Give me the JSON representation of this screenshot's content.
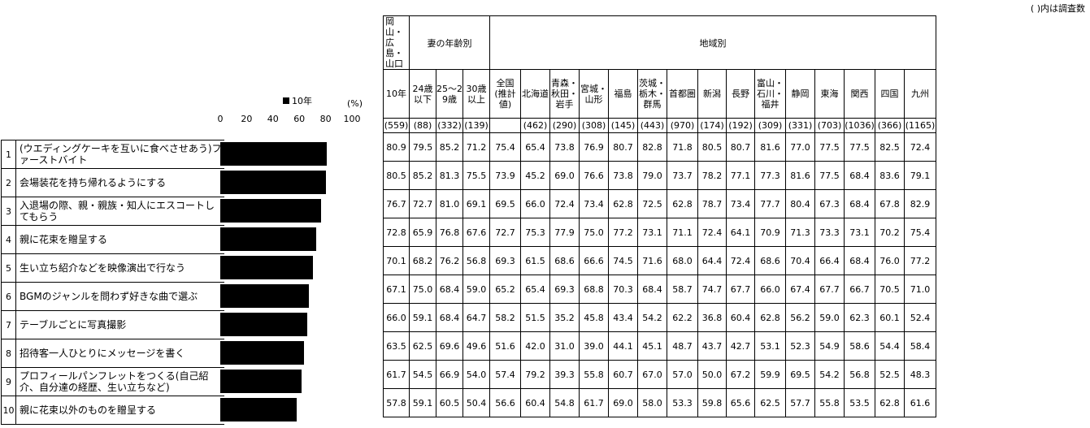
{
  "note": "( )内は調査数",
  "legend_label": "10年",
  "axis_unit": "(%)",
  "header": {
    "first_group": "岡山・広島・山口",
    "wife_age_group": "妻の年齢別",
    "region_group": "地域別"
  },
  "columns": [
    {
      "label": "10年",
      "n": "(559)"
    },
    {
      "label": "24歳以下",
      "n": "(88)"
    },
    {
      "label": "25～29歳",
      "n": "(332)"
    },
    {
      "label": "30歳以上",
      "n": "(139)"
    },
    {
      "label": "全国(推計値)",
      "n": ""
    },
    {
      "label": "北海道",
      "n": "(462)"
    },
    {
      "label": "青森・秋田・岩手",
      "n": "(290)"
    },
    {
      "label": "宮城・山形",
      "n": "(308)"
    },
    {
      "label": "福島",
      "n": "(145)"
    },
    {
      "label": "茨城・栃木・群馬",
      "n": "(443)"
    },
    {
      "label": "首都圏",
      "n": "(970)"
    },
    {
      "label": "新潟",
      "n": "(174)"
    },
    {
      "label": "長野",
      "n": "(192)"
    },
    {
      "label": "富山・石川・福井",
      "n": "(309)"
    },
    {
      "label": "静岡",
      "n": "(331)"
    },
    {
      "label": "東海",
      "n": "(703)"
    },
    {
      "label": "関西",
      "n": "(1036)"
    },
    {
      "label": "四国",
      "n": "(366)"
    },
    {
      "label": "九州",
      "n": "(1165)"
    }
  ],
  "rows": [
    {
      "num": "1",
      "label": "(ウエディングケーキを互いに食べさせあう)ファーストバイト",
      "values": [
        "80.9",
        "79.5",
        "85.2",
        "71.2",
        "75.4",
        "65.4",
        "73.8",
        "76.9",
        "80.7",
        "82.8",
        "71.8",
        "80.5",
        "80.7",
        "81.6",
        "77.0",
        "77.5",
        "77.5",
        "82.5",
        "72.4"
      ]
    },
    {
      "num": "2",
      "label": "会場装花を持ち帰れるようにする",
      "values": [
        "80.5",
        "85.2",
        "81.3",
        "75.5",
        "73.9",
        "45.2",
        "69.0",
        "76.6",
        "73.8",
        "79.0",
        "73.7",
        "78.2",
        "77.1",
        "77.3",
        "81.6",
        "77.5",
        "68.4",
        "83.6",
        "79.1"
      ]
    },
    {
      "num": "3",
      "label": "入退場の際、親・親族・知人にエスコートしてもらう",
      "values": [
        "76.7",
        "72.7",
        "81.0",
        "69.1",
        "69.5",
        "66.0",
        "72.4",
        "73.4",
        "62.8",
        "72.5",
        "62.8",
        "78.7",
        "73.4",
        "77.7",
        "80.4",
        "67.3",
        "68.4",
        "67.8",
        "82.9"
      ]
    },
    {
      "num": "4",
      "label": "親に花束を贈呈する",
      "values": [
        "72.8",
        "65.9",
        "76.8",
        "67.6",
        "72.7",
        "75.3",
        "77.9",
        "75.0",
        "77.2",
        "73.1",
        "71.1",
        "72.4",
        "64.1",
        "70.9",
        "71.3",
        "73.3",
        "73.1",
        "70.2",
        "75.4"
      ]
    },
    {
      "num": "5",
      "label": "生い立ち紹介などを映像演出で行なう",
      "values": [
        "70.1",
        "68.2",
        "76.2",
        "56.8",
        "69.3",
        "61.5",
        "68.6",
        "66.6",
        "74.5",
        "71.6",
        "68.0",
        "64.4",
        "72.4",
        "68.6",
        "70.4",
        "66.4",
        "68.4",
        "76.0",
        "77.2"
      ]
    },
    {
      "num": "6",
      "label": "BGMのジャンルを問わず好きな曲で選ぶ",
      "values": [
        "67.1",
        "75.0",
        "68.4",
        "59.0",
        "65.2",
        "65.4",
        "69.3",
        "68.8",
        "70.3",
        "68.4",
        "58.7",
        "74.7",
        "67.7",
        "66.0",
        "67.4",
        "67.7",
        "66.7",
        "70.5",
        "71.0"
      ]
    },
    {
      "num": "7",
      "label": "テーブルごとに写真撮影",
      "values": [
        "66.0",
        "59.1",
        "68.4",
        "64.7",
        "58.2",
        "51.5",
        "35.2",
        "45.8",
        "43.4",
        "54.2",
        "62.2",
        "36.8",
        "60.4",
        "62.8",
        "56.2",
        "59.0",
        "62.3",
        "60.1",
        "52.4"
      ]
    },
    {
      "num": "8",
      "label": "招待客一人ひとりにメッセージを書く",
      "values": [
        "63.5",
        "62.5",
        "69.6",
        "49.6",
        "51.6",
        "42.0",
        "31.0",
        "39.0",
        "44.1",
        "45.1",
        "48.7",
        "43.7",
        "42.7",
        "53.1",
        "52.3",
        "54.9",
        "58.6",
        "54.4",
        "58.4"
      ]
    },
    {
      "num": "9",
      "label": "プロフィールパンフレットをつくる(自己紹介、自分達の経歴、生い立ちなど)",
      "values": [
        "61.7",
        "54.5",
        "66.9",
        "54.0",
        "57.4",
        "79.2",
        "39.3",
        "55.8",
        "60.7",
        "67.0",
        "57.0",
        "50.0",
        "67.2",
        "59.9",
        "69.5",
        "54.2",
        "56.8",
        "52.5",
        "48.3"
      ]
    },
    {
      "num": "10",
      "label": "親に花束以外のものを贈呈する",
      "values": [
        "57.8",
        "59.1",
        "60.5",
        "50.4",
        "56.6",
        "60.4",
        "54.8",
        "61.7",
        "69.0",
        "58.0",
        "53.3",
        "59.8",
        "65.6",
        "62.5",
        "57.7",
        "55.8",
        "53.5",
        "62.8",
        "61.6"
      ]
    }
  ],
  "chart_data": {
    "type": "bar",
    "orientation": "horizontal",
    "categories": [
      "(ウエディングケーキを互いに食べさせあう)ファーストバイト",
      "会場装花を持ち帰れるようにする",
      "入退場の際、親・親族・知人にエスコートしてもらう",
      "親に花束を贈呈する",
      "生い立ち紹介などを映像演出で行なう",
      "BGMのジャンルを問わず好きな曲で選ぶ",
      "テーブルごとに写真撮影",
      "招待客一人ひとりにメッセージを書く",
      "プロフィールパンフレットをつくる(自己紹介、自分達の経歴、生い立ちなど)",
      "親に花束以外のものを贈呈する"
    ],
    "series": [
      {
        "name": "10年",
        "values": [
          80.9,
          80.5,
          76.7,
          72.8,
          70.1,
          67.1,
          66.0,
          63.5,
          61.7,
          57.8
        ]
      }
    ],
    "xlim": [
      0,
      100
    ],
    "ticks": [
      "0",
      "20",
      "40",
      "60",
      "80",
      "100"
    ],
    "ylabel": "",
    "xlabel": "(%)",
    "legend_position": "top",
    "bar_color": "#000000"
  }
}
